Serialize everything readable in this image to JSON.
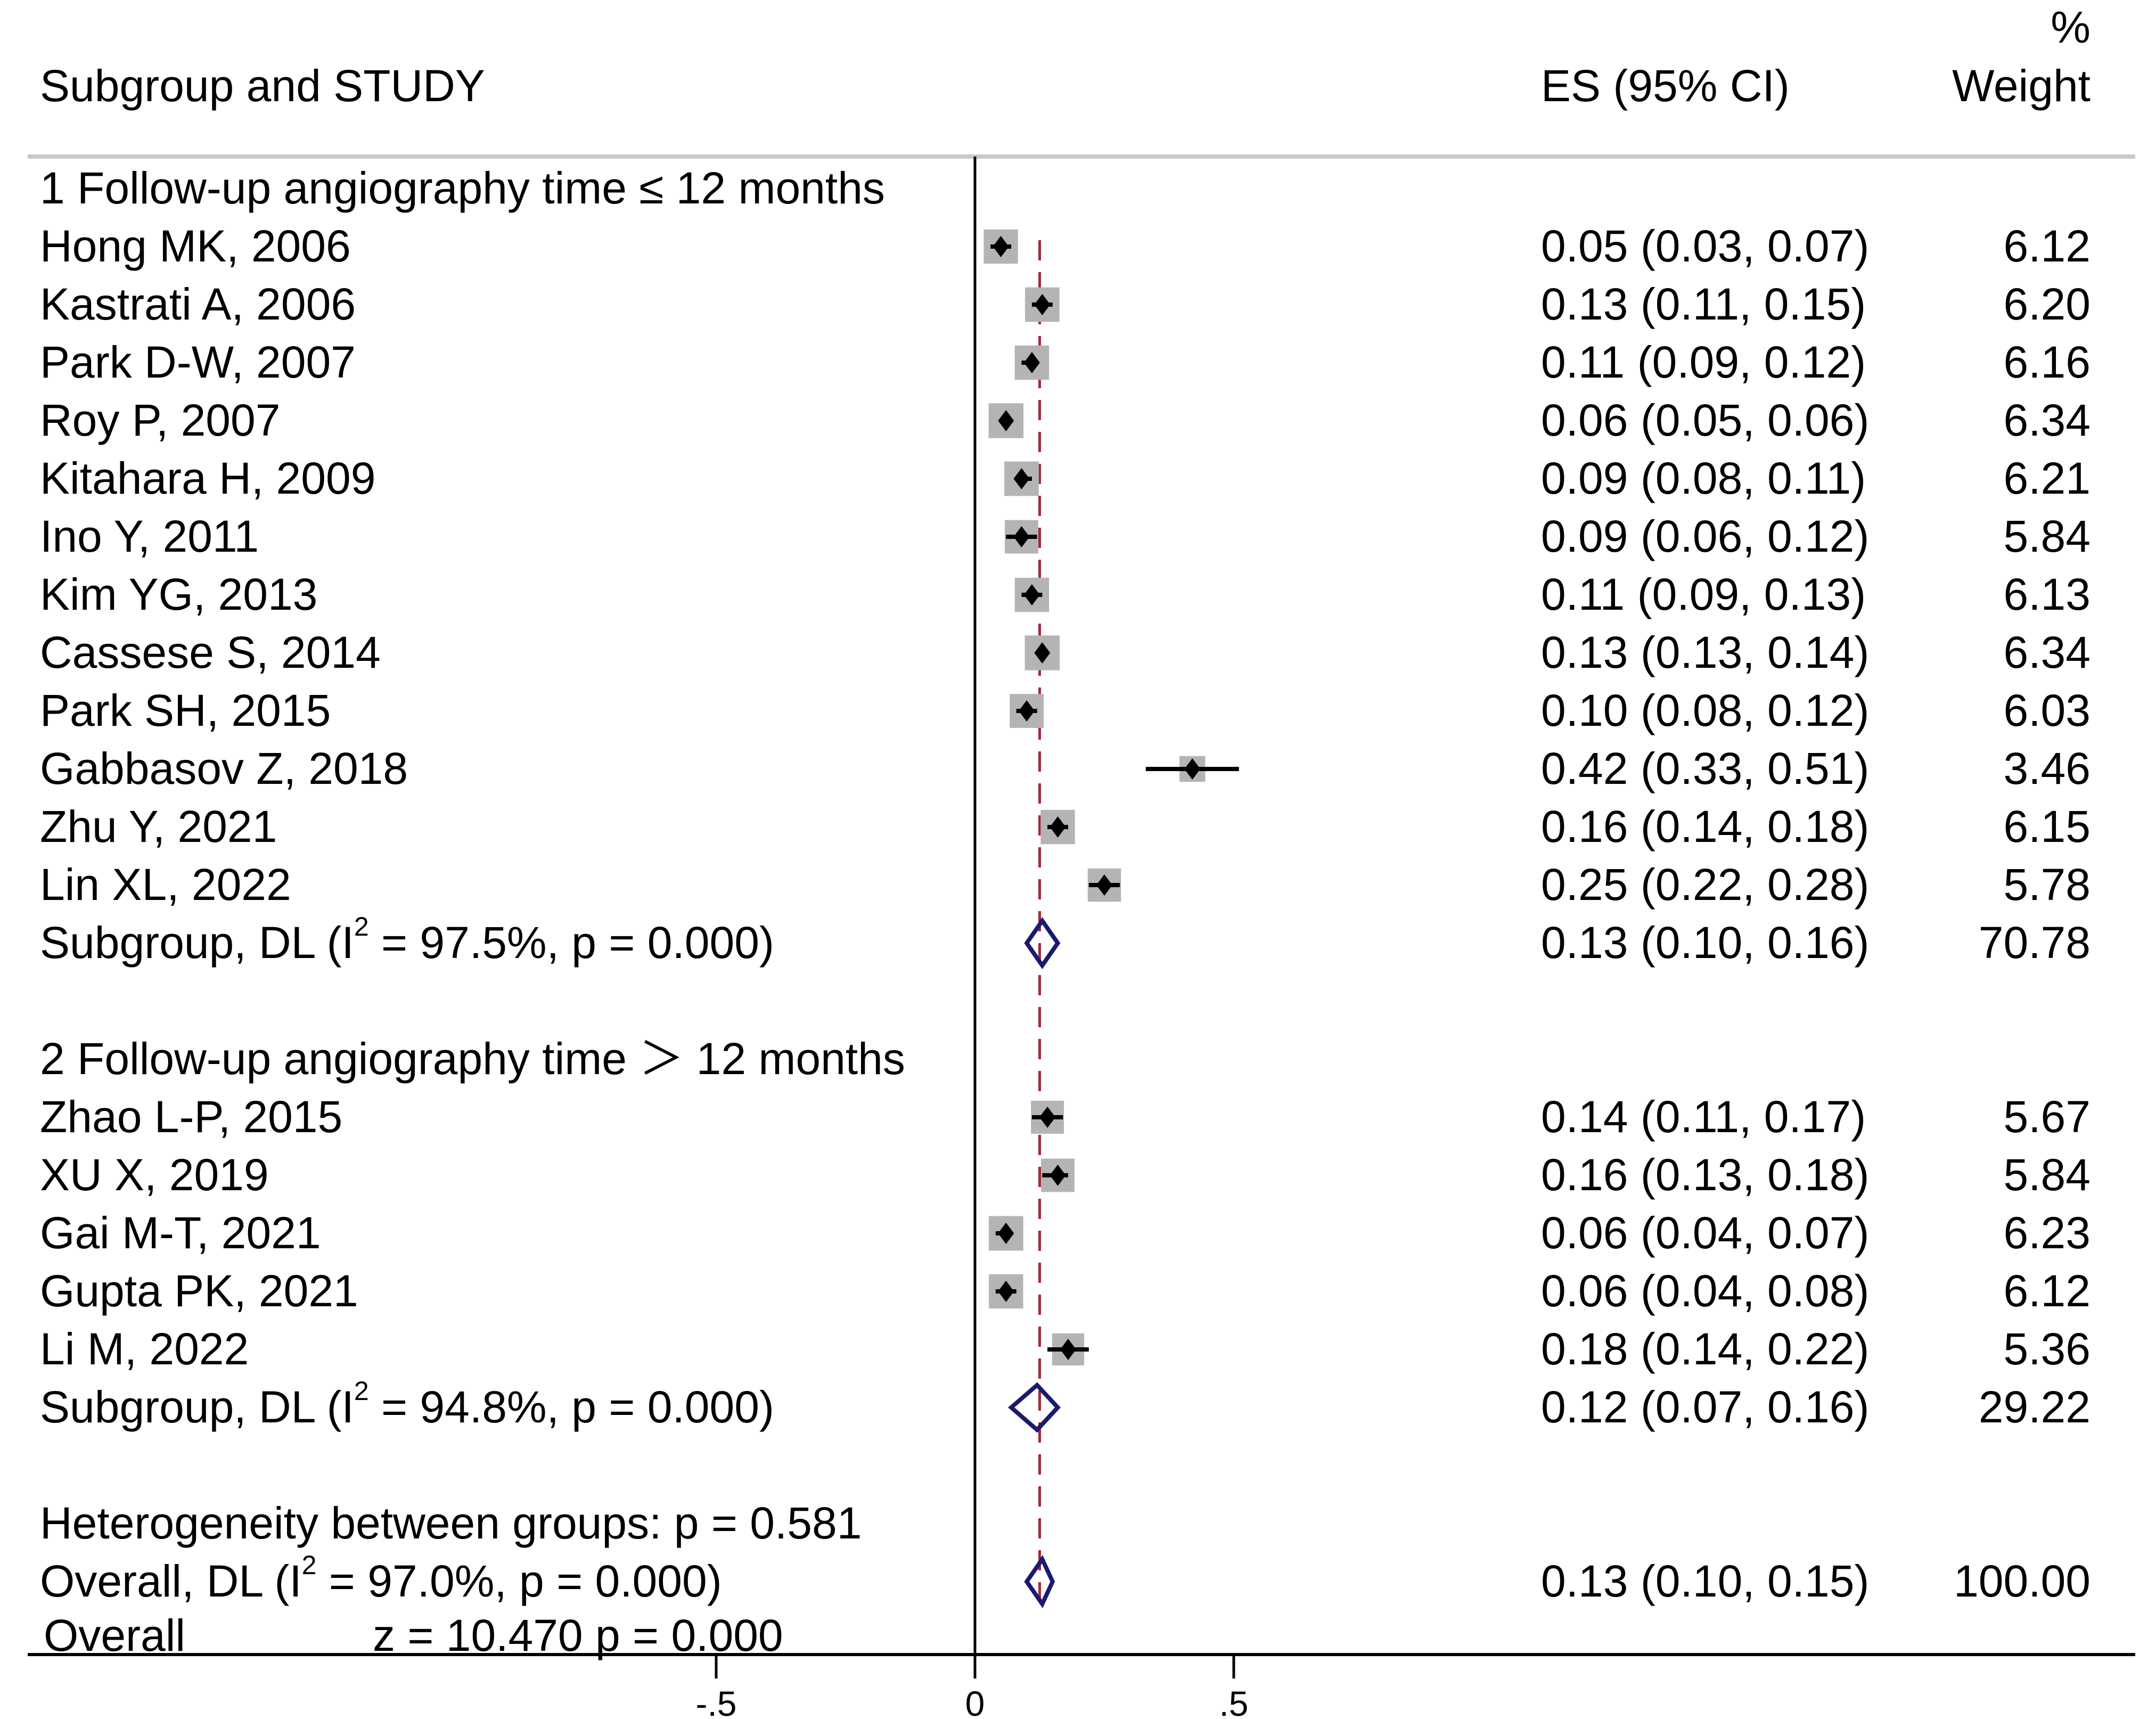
{
  "chart_data": {
    "type": "forest",
    "headers": {
      "study": "Subgroup and STUDY",
      "es": "ES (95% CI)",
      "weight_top": "%",
      "weight": "Weight"
    },
    "xlim": [
      -1.0,
      1.1
    ],
    "x_ticks": [
      {
        "value": -0.5,
        "label": "-.5"
      },
      {
        "value": 0,
        "label": "0"
      },
      {
        "value": 0.5,
        "label": ".5"
      }
    ],
    "overall_line": 0.125,
    "colors": {
      "marker": "#000000",
      "weight_box": "#b4b4b4",
      "summary_diamond": "#1a1a6e",
      "overall_line": "#a5283a",
      "header_rule": "#c8c8c8"
    },
    "rows": [
      {
        "kind": "group",
        "label": "1 Follow-up angiography time ≤ 12 months"
      },
      {
        "kind": "study",
        "label": "Hong MK, 2006",
        "es": 0.05,
        "lo": 0.03,
        "hi": 0.07,
        "es_text": "0.05 (0.03, 0.07)",
        "weight": 6.12,
        "weight_text": "6.12"
      },
      {
        "kind": "study",
        "label": "Kastrati A, 2006",
        "es": 0.13,
        "lo": 0.11,
        "hi": 0.15,
        "es_text": "0.13 (0.11, 0.15)",
        "weight": 6.2,
        "weight_text": "6.20"
      },
      {
        "kind": "study",
        "label": "Park D-W, 2007",
        "es": 0.11,
        "lo": 0.09,
        "hi": 0.12,
        "es_text": "0.11 (0.09, 0.12)",
        "weight": 6.16,
        "weight_text": "6.16"
      },
      {
        "kind": "study",
        "label": "Roy P, 2007",
        "es": 0.06,
        "lo": 0.05,
        "hi": 0.06,
        "es_text": "0.06 (0.05, 0.06)",
        "weight": 6.34,
        "weight_text": "6.34"
      },
      {
        "kind": "study",
        "label": "Kitahara H, 2009",
        "es": 0.09,
        "lo": 0.08,
        "hi": 0.11,
        "es_text": "0.09 (0.08, 0.11)",
        "weight": 6.21,
        "weight_text": "6.21"
      },
      {
        "kind": "study",
        "label": "Ino Y, 2011",
        "es": 0.09,
        "lo": 0.06,
        "hi": 0.12,
        "es_text": "0.09 (0.06, 0.12)",
        "weight": 5.84,
        "weight_text": "5.84"
      },
      {
        "kind": "study",
        "label": "Kim YG, 2013",
        "es": 0.11,
        "lo": 0.09,
        "hi": 0.13,
        "es_text": "0.11 (0.09, 0.13)",
        "weight": 6.13,
        "weight_text": "6.13"
      },
      {
        "kind": "study",
        "label": "Cassese S, 2014",
        "es": 0.13,
        "lo": 0.13,
        "hi": 0.14,
        "es_text": "0.13 (0.13, 0.14)",
        "weight": 6.34,
        "weight_text": "6.34"
      },
      {
        "kind": "study",
        "label": "Park SH, 2015",
        "es": 0.1,
        "lo": 0.08,
        "hi": 0.12,
        "es_text": "0.10 (0.08, 0.12)",
        "weight": 6.03,
        "weight_text": "6.03"
      },
      {
        "kind": "study",
        "label": "Gabbasov Z, 2018",
        "es": 0.42,
        "lo": 0.33,
        "hi": 0.51,
        "es_text": "0.42 (0.33, 0.51)",
        "weight": 3.46,
        "weight_text": "3.46"
      },
      {
        "kind": "study",
        "label": "Zhu Y, 2021",
        "es": 0.16,
        "lo": 0.14,
        "hi": 0.18,
        "es_text": "0.16 (0.14, 0.18)",
        "weight": 6.15,
        "weight_text": "6.15"
      },
      {
        "kind": "study",
        "label": "Lin XL, 2022",
        "es": 0.25,
        "lo": 0.22,
        "hi": 0.28,
        "es_text": "0.25 (0.22, 0.28)",
        "weight": 5.78,
        "weight_text": "5.78"
      },
      {
        "kind": "subtotal",
        "label_pre": "Subgroup, DL (I",
        "label_sup": "2",
        "label_post": " = 97.5%, p = 0.000)",
        "es": 0.13,
        "lo": 0.1,
        "hi": 0.16,
        "es_text": "0.13 (0.10, 0.16)",
        "weight": 70.78,
        "weight_text": "70.78"
      },
      {
        "kind": "blank"
      },
      {
        "kind": "group",
        "label": "2 Follow-up angiography time ＞ 12 months"
      },
      {
        "kind": "study",
        "label": "Zhao L-P, 2015",
        "es": 0.14,
        "lo": 0.11,
        "hi": 0.17,
        "es_text": "0.14 (0.11, 0.17)",
        "weight": 5.67,
        "weight_text": "5.67"
      },
      {
        "kind": "study",
        "label": "XU X, 2019",
        "es": 0.16,
        "lo": 0.13,
        "hi": 0.18,
        "es_text": "0.16 (0.13, 0.18)",
        "weight": 5.84,
        "weight_text": "5.84"
      },
      {
        "kind": "study",
        "label": "Gai M-T, 2021",
        "es": 0.06,
        "lo": 0.04,
        "hi": 0.07,
        "es_text": "0.06 (0.04, 0.07)",
        "weight": 6.23,
        "weight_text": "6.23"
      },
      {
        "kind": "study",
        "label": "Gupta PK, 2021",
        "es": 0.06,
        "lo": 0.04,
        "hi": 0.08,
        "es_text": "0.06 (0.04, 0.08)",
        "weight": 6.12,
        "weight_text": "6.12"
      },
      {
        "kind": "study",
        "label": "Li M, 2022",
        "es": 0.18,
        "lo": 0.14,
        "hi": 0.22,
        "es_text": "0.18 (0.14, 0.22)",
        "weight": 5.36,
        "weight_text": "5.36"
      },
      {
        "kind": "subtotal",
        "label_pre": "Subgroup, DL (I",
        "label_sup": "2",
        "label_post": " = 94.8%, p = 0.000)",
        "es": 0.12,
        "lo": 0.07,
        "hi": 0.16,
        "es_text": "0.12 (0.07, 0.16)",
        "weight": 29.22,
        "weight_text": "29.22"
      },
      {
        "kind": "blank"
      },
      {
        "kind": "note",
        "label": "Heterogeneity between groups: p = 0.581"
      },
      {
        "kind": "overall",
        "label_pre": "Overall, DL (I",
        "label_sup": "2",
        "label_post": " = 97.0%, p = 0.000)",
        "es": 0.13,
        "lo": 0.1,
        "hi": 0.15,
        "es_text": "0.13 (0.10, 0.15)",
        "weight": 100.0,
        "weight_text": "100.00"
      }
    ],
    "overall_test": {
      "label": "Overall",
      "stat": "z =  10.470  p = 0.000"
    }
  }
}
